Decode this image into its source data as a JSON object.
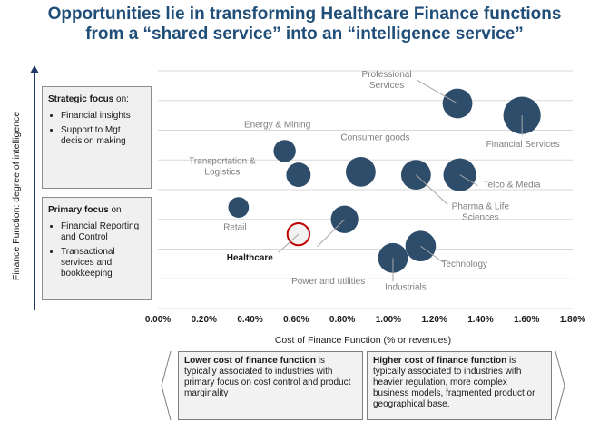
{
  "title_line1": "Opportunities lie in transforming Healthcare Finance functions",
  "title_line2": "from a “shared service” into an “intelligence service”",
  "y_axis_label": "Finance Function:  degree of intelligence",
  "strategic_box": {
    "header": "Strategic focus",
    "header_suffix": " on:",
    "items": [
      "Financial insights",
      "Support to Mgt decision making"
    ]
  },
  "primary_box": {
    "header": "Primary focus",
    "header_suffix": " on",
    "items": [
      "Financial Reporting and Control",
      "Transactional services and bookkeeping"
    ]
  },
  "lower_cost_box": {
    "bold": "Lower cost of finance function",
    "rest": " is typically associated to industries with primary focus on cost control and product marginality"
  },
  "higher_cost_box": {
    "bold": "Higher cost of finance function",
    "rest": " is typically associated to industries with heavier regulation, more complex business models, fragmented product or geographical base."
  },
  "colors": {
    "bubble": "#2e4d6b",
    "highlight": "#c00000",
    "label": "#7f7f7f",
    "title": "#1f4e79",
    "grid": "#d9d9d9"
  },
  "chart_data": {
    "type": "scatter",
    "xlabel": "Cost of Finance Function (% or revenues)",
    "ylabel": "Finance Function:  degree of intelligence",
    "xlim": [
      0.0,
      1.8
    ],
    "ylim": [
      0,
      8
    ],
    "x_ticks": [
      "0.00%",
      "0.20%",
      "0.40%",
      "0.60%",
      "0.80%",
      "1.00%",
      "1.20%",
      "1.40%",
      "1.60%",
      "1.80%"
    ],
    "grid": "horizontal",
    "points": [
      {
        "label": "Professional Services",
        "x": 1.3,
        "y": 6.9,
        "size": 2
      },
      {
        "label": "Financial Services",
        "x": 1.58,
        "y": 6.5,
        "size": 3
      },
      {
        "label": "Energy & Mining",
        "x": 0.55,
        "y": 5.3,
        "size": 1
      },
      {
        "label": "Consumer goods",
        "x": 0.88,
        "y": 4.6,
        "size": 2
      },
      {
        "label": "Transportation & Logistics",
        "x": 0.61,
        "y": 4.5,
        "size": 1.3
      },
      {
        "label": "Pharma & Life Sciences",
        "x": 1.12,
        "y": 4.5,
        "size": 2
      },
      {
        "label": "Telco & Media",
        "x": 1.31,
        "y": 4.5,
        "size": 2.4
      },
      {
        "label": "Retail",
        "x": 0.35,
        "y": 3.4,
        "size": 0.8
      },
      {
        "label": "Power and utilities",
        "x": 0.81,
        "y": 3.0,
        "size": 1.7
      },
      {
        "label": "Healthcare",
        "x": 0.61,
        "y": 2.5,
        "size": 1.7,
        "highlight": true
      },
      {
        "label": "Technology",
        "x": 1.14,
        "y": 2.1,
        "size": 2.1
      },
      {
        "label": "Industrials",
        "x": 1.02,
        "y": 1.7,
        "size": 2
      }
    ]
  }
}
